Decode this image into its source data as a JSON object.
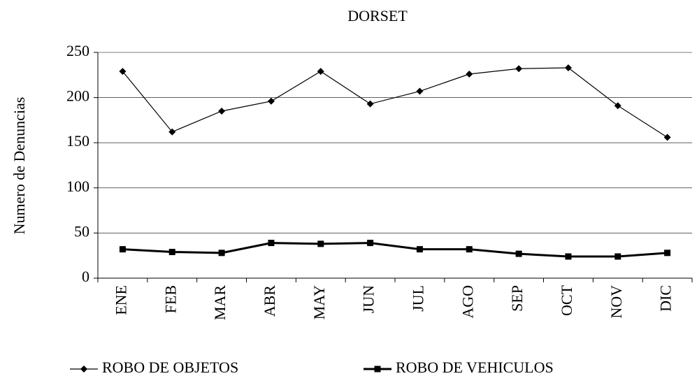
{
  "chart_data": {
    "type": "line",
    "title": "DORSET",
    "y_label": "Numero de Denuncias",
    "categories": [
      "ENE",
      "FEB",
      "MAR",
      "ABR",
      "MAY",
      "JUN",
      "JUL",
      "AGO",
      "SEP",
      "OCT",
      "NOV",
      "DIC"
    ],
    "series": [
      {
        "name": "ROBO DE OBJETOS",
        "color": "#000000",
        "marker": "diamond",
        "values": [
          229,
          162,
          185,
          196,
          229,
          193,
          207,
          226,
          232,
          233,
          191,
          156
        ]
      },
      {
        "name": "ROBO DE VEHICULOS",
        "color": "#000000",
        "marker": "square",
        "values": [
          32,
          29,
          28,
          39,
          38,
          39,
          32,
          32,
          27,
          24,
          24,
          28
        ]
      }
    ],
    "ylim": [
      0,
      250
    ],
    "yticks": [
      0,
      50,
      100,
      150,
      200,
      250
    ],
    "grid": true,
    "legend": "bottom"
  }
}
